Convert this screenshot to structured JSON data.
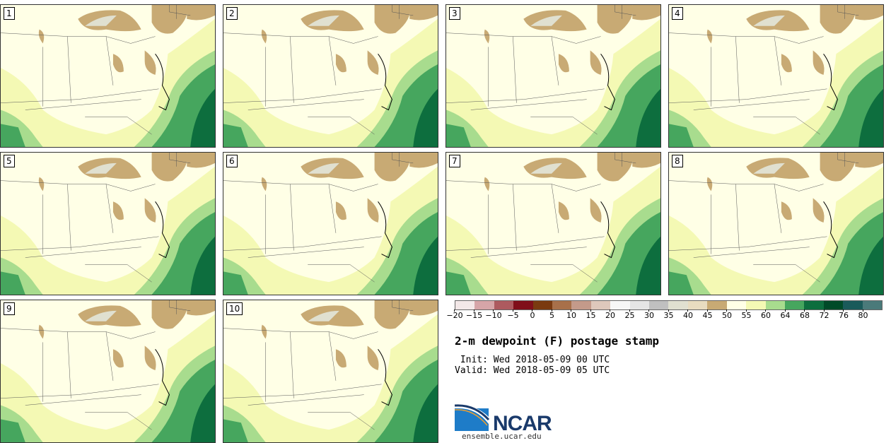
{
  "panels": [
    "1",
    "2",
    "3",
    "4",
    "5",
    "6",
    "7",
    "8",
    "9",
    "10"
  ],
  "colorbar": {
    "colors": [
      "#f3e8e8",
      "#d6a5a8",
      "#ad5a5f",
      "#800f1a",
      "#7a3a10",
      "#a8704a",
      "#c49a8a",
      "#dec8bc",
      "#f7f7f7",
      "#e5e5e5",
      "#c0c0c0",
      "#e0e0d0",
      "#e8dcc0",
      "#c8aa74",
      "#ffffe6",
      "#f4f9b4",
      "#a8dc8e",
      "#46a65e",
      "#0d6e3e",
      "#004a28",
      "#1a5a5a",
      "#4a7a7a"
    ],
    "ticks": [
      "−20",
      "−15",
      "−10",
      "−5",
      "0",
      "5",
      "10",
      "15",
      "20",
      "25",
      "30",
      "35",
      "40",
      "45",
      "50",
      "55",
      "60",
      "64",
      "68",
      "72",
      "76",
      "80"
    ]
  },
  "title": "2-m dewpoint (F) postage stamp",
  "init": " Init: Wed 2018-05-09 00 UTC",
  "valid": "Valid: Wed 2018-05-09 05 UTC",
  "logo_text": "NCAR",
  "url": "ensemble.ucar.edu"
}
